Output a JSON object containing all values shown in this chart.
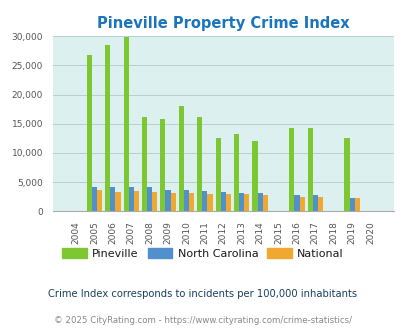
{
  "title": "Pineville Property Crime Index",
  "years": [
    2004,
    2005,
    2006,
    2007,
    2008,
    2009,
    2010,
    2011,
    2012,
    2013,
    2014,
    2015,
    2016,
    2017,
    2018,
    2019,
    2020
  ],
  "pineville": [
    0,
    26800,
    28500,
    29900,
    16200,
    15800,
    18000,
    16200,
    12600,
    13200,
    12000,
    0,
    14200,
    14200,
    0,
    12500,
    0
  ],
  "north_carolina": [
    0,
    4100,
    4100,
    4100,
    4100,
    3700,
    3600,
    3500,
    3300,
    3200,
    3100,
    0,
    2750,
    2700,
    0,
    2300,
    0
  ],
  "national": [
    0,
    3600,
    3300,
    3400,
    3300,
    3200,
    3100,
    3000,
    3000,
    2900,
    2700,
    0,
    2500,
    2400,
    0,
    2200,
    0
  ],
  "pineville_color": "#7dc832",
  "nc_color": "#4f90cd",
  "national_color": "#f0a830",
  "bg_color": "#ddf0f0",
  "title_color": "#1a75bc",
  "grid_color": "#b0cccc",
  "ylabel_max": 30000,
  "yticks": [
    0,
    5000,
    10000,
    15000,
    20000,
    25000,
    30000
  ],
  "note": "Crime Index corresponds to incidents per 100,000 inhabitants",
  "footer": "© 2025 CityRating.com - https://www.cityrating.com/crime-statistics/",
  "legend_text_color": "#1a1a1a",
  "note_color": "#1a4060",
  "footer_color": "#888888",
  "bar_width": 0.28
}
